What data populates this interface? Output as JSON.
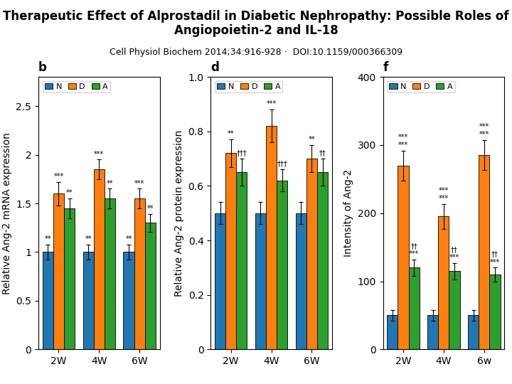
{
  "title": "Therapeutic Effect of Alprostadil in Diabetic Nephropathy: Possible Roles of Angiopoietin-2 and IL-18",
  "subtitle": "Cell Physiol Biochem 2014;34:916-928 ·  DOI:10.1159/000366309",
  "chart_data": [
    {
      "type": "bar",
      "title": "b",
      "y_label": "Relative Ang-2 mRNA expression",
      "categories": [
        "2W",
        "4W",
        "6W"
      ],
      "series": [
        {
          "name": "N",
          "values": [
            1.0,
            1.0,
            1.0
          ],
          "errors": [
            0.08,
            0.08,
            0.08
          ]
        },
        {
          "name": "D",
          "values": [
            1.6,
            1.85,
            1.55
          ],
          "errors": [
            0.12,
            0.1,
            0.1
          ]
        },
        {
          "name": "A",
          "values": [
            1.45,
            1.55,
            1.3
          ],
          "errors": [
            0.1,
            0.1,
            0.09
          ]
        }
      ],
      "ylim": [
        0,
        2.8
      ],
      "yticks": [
        0,
        0.5,
        1,
        1.5,
        2,
        2.5
      ],
      "legend": "upper left",
      "annotations": [
        {
          "category": "2W",
          "series": "N",
          "text": "**"
        },
        {
          "category": "2W",
          "series": "D",
          "text": "***"
        },
        {
          "category": "2W",
          "series": "A",
          "text": "**"
        },
        {
          "category": "4W",
          "series": "N",
          "text": "**"
        },
        {
          "category": "4W",
          "series": "D",
          "text": "***"
        },
        {
          "category": "4W",
          "series": "A",
          "text": "**"
        },
        {
          "category": "6W",
          "series": "N",
          "text": "**"
        },
        {
          "category": "6W",
          "series": "D",
          "text": "***"
        },
        {
          "category": "6W",
          "series": "A",
          "text": "**"
        }
      ]
    },
    {
      "type": "bar",
      "title": "d",
      "y_label": "Relative Ang-2 protein expression",
      "categories": [
        "2W",
        "4W",
        "6W"
      ],
      "series": [
        {
          "name": "N",
          "values": [
            0.5,
            0.5,
            0.5
          ],
          "errors": [
            0.04,
            0.04,
            0.04
          ]
        },
        {
          "name": "D",
          "values": [
            0.72,
            0.82,
            0.7
          ],
          "errors": [
            0.05,
            0.06,
            0.05
          ]
        },
        {
          "name": "A",
          "values": [
            0.65,
            0.62,
            0.65
          ],
          "errors": [
            0.05,
            0.04,
            0.05
          ]
        }
      ],
      "ylim": [
        0,
        1.0
      ],
      "yticks": [
        0,
        0.2,
        0.4,
        0.6,
        0.8,
        {
          "value": 1.0,
          "label": "1.0"
        }
      ],
      "legend": "upper left",
      "annotations": [
        {
          "category": "2W",
          "series": "D",
          "text": "**"
        },
        {
          "category": "2W",
          "series": "A",
          "text": "†††"
        },
        {
          "category": "4W",
          "series": "D",
          "text": "***"
        },
        {
          "category": "4W",
          "series": "A",
          "text": "†††"
        },
        {
          "category": "6W",
          "series": "D",
          "text": "**"
        },
        {
          "category": "6W",
          "series": "A",
          "text": "††"
        }
      ]
    },
    {
      "type": "bar",
      "title": "f",
      "y_label": "Intensity of Ang-2",
      "categories": [
        "2W",
        "4W",
        "6w"
      ],
      "series": [
        {
          "name": "N",
          "values": [
            50,
            50,
            50
          ],
          "errors": [
            8,
            8,
            8
          ]
        },
        {
          "name": "D",
          "values": [
            270,
            195,
            285
          ],
          "errors": [
            22,
            18,
            22
          ]
        },
        {
          "name": "A",
          "values": [
            120,
            115,
            110
          ],
          "errors": [
            12,
            12,
            10
          ]
        }
      ],
      "ylim": [
        0,
        400
      ],
      "yticks": [
        0,
        100,
        200,
        300,
        400
      ],
      "legend": "upper left",
      "annotations": [
        {
          "category": "2W",
          "series": "D",
          "text": "***"
        },
        {
          "category": "2W",
          "series": "D",
          "text": "***"
        },
        {
          "category": "2W",
          "series": "A",
          "text": "***"
        },
        {
          "category": "2W",
          "series": "A",
          "text": "††"
        },
        {
          "category": "4W",
          "series": "D",
          "text": "***"
        },
        {
          "category": "4W",
          "series": "D",
          "text": "***"
        },
        {
          "category": "4W",
          "series": "A",
          "text": "***"
        },
        {
          "category": "4W",
          "series": "A",
          "text": "††"
        },
        {
          "category": "6w",
          "series": "D",
          "text": "***"
        },
        {
          "category": "6w",
          "series": "D",
          "text": "***"
        },
        {
          "category": "6w",
          "series": "A",
          "text": "***"
        },
        {
          "category": "6w",
          "series": "A",
          "text": "††"
        }
      ]
    }
  ]
}
